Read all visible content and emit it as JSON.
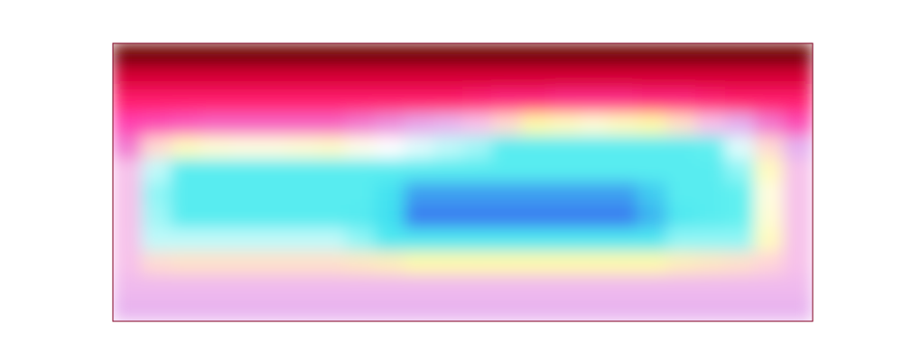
{
  "chart_data": {
    "type": "heatmap",
    "tick_labels": false,
    "zlim": [
      0,
      1
    ],
    "values": [
      [
        0.02,
        0.02,
        0.02,
        0.02,
        0.02,
        0.02,
        0.02,
        0.02,
        0.02,
        0.02,
        0.02,
        0.02,
        0.02,
        0.02,
        0.02,
        0.02,
        0.02,
        0.02,
        0.02,
        0.02,
        0.02,
        0.02,
        0.02,
        0.02
      ],
      [
        0.18,
        0.18,
        0.18,
        0.18,
        0.18,
        0.18,
        0.18,
        0.18,
        0.18,
        0.18,
        0.18,
        0.18,
        0.18,
        0.18,
        0.18,
        0.18,
        0.18,
        0.18,
        0.18,
        0.18,
        0.18,
        0.18,
        0.18,
        0.18
      ],
      [
        0.28,
        0.28,
        0.28,
        0.28,
        0.28,
        0.28,
        0.28,
        0.28,
        0.28,
        0.28,
        0.28,
        0.28,
        0.29,
        0.3,
        0.3,
        0.31,
        0.31,
        0.31,
        0.3,
        0.3,
        0.29,
        0.28,
        0.28,
        0.28
      ],
      [
        0.35,
        0.36,
        0.37,
        0.38,
        0.38,
        0.38,
        0.38,
        0.38,
        0.4,
        0.42,
        0.44,
        0.46,
        0.5,
        0.55,
        0.6,
        0.62,
        0.64,
        0.62,
        0.6,
        0.56,
        0.5,
        0.45,
        0.4,
        0.36
      ],
      [
        0.4,
        0.55,
        0.62,
        0.64,
        0.65,
        0.65,
        0.64,
        0.63,
        0.66,
        0.68,
        0.7,
        0.72,
        0.74,
        0.8,
        0.8,
        0.8,
        0.8,
        0.8,
        0.8,
        0.8,
        0.78,
        0.7,
        0.55,
        0.45
      ],
      [
        0.5,
        0.72,
        0.8,
        0.8,
        0.8,
        0.8,
        0.8,
        0.8,
        0.8,
        0.8,
        0.8,
        0.8,
        0.8,
        0.8,
        0.8,
        0.8,
        0.8,
        0.8,
        0.8,
        0.8,
        0.8,
        0.75,
        0.62,
        0.5
      ],
      [
        0.5,
        0.75,
        0.8,
        0.8,
        0.8,
        0.8,
        0.8,
        0.8,
        0.8,
        0.85,
        0.92,
        0.92,
        0.92,
        0.92,
        0.92,
        0.92,
        0.92,
        0.92,
        0.88,
        0.8,
        0.8,
        0.78,
        0.65,
        0.5
      ],
      [
        0.5,
        0.74,
        0.8,
        0.8,
        0.8,
        0.8,
        0.8,
        0.8,
        0.81,
        0.86,
        0.95,
        0.95,
        0.95,
        0.95,
        0.95,
        0.95,
        0.95,
        0.95,
        0.9,
        0.82,
        0.8,
        0.78,
        0.64,
        0.5
      ],
      [
        0.5,
        0.72,
        0.72,
        0.72,
        0.72,
        0.72,
        0.72,
        0.72,
        0.75,
        0.82,
        0.82,
        0.82,
        0.82,
        0.82,
        0.82,
        0.82,
        0.82,
        0.82,
        0.82,
        0.75,
        0.75,
        0.75,
        0.62,
        0.5
      ],
      [
        0.5,
        0.55,
        0.56,
        0.56,
        0.56,
        0.56,
        0.56,
        0.56,
        0.57,
        0.58,
        0.6,
        0.6,
        0.6,
        0.6,
        0.6,
        0.6,
        0.6,
        0.6,
        0.6,
        0.58,
        0.57,
        0.56,
        0.54,
        0.5
      ],
      [
        0.48,
        0.48,
        0.48,
        0.48,
        0.48,
        0.48,
        0.48,
        0.48,
        0.48,
        0.48,
        0.48,
        0.48,
        0.48,
        0.48,
        0.48,
        0.48,
        0.48,
        0.48,
        0.48,
        0.48,
        0.48,
        0.48,
        0.48,
        0.48
      ],
      [
        0.46,
        0.46,
        0.46,
        0.46,
        0.46,
        0.46,
        0.46,
        0.46,
        0.46,
        0.46,
        0.46,
        0.46,
        0.46,
        0.46,
        0.46,
        0.46,
        0.46,
        0.46,
        0.46,
        0.46,
        0.46,
        0.46,
        0.46,
        0.46
      ]
    ]
  }
}
